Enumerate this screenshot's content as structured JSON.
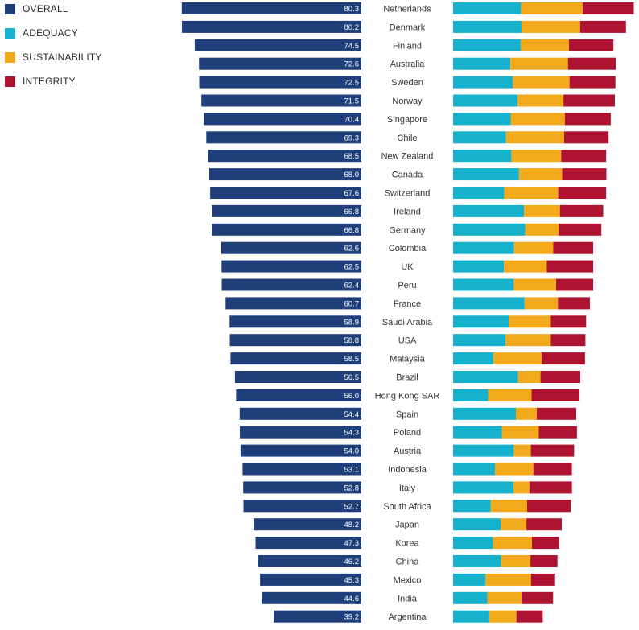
{
  "legend": {
    "overall": "OVERALL",
    "adequacy": "ADEQUACY",
    "sustainability": "SUSTAINABILITY",
    "integrity": "INTEGRITY"
  },
  "colors": {
    "overall": "#1f3f7a",
    "adequacy": "#16b1cc",
    "sustainability": "#f3a91c",
    "integrity": "#ae1431",
    "value_text": "#ffffff",
    "country_text": "#333333"
  },
  "chart_data": {
    "type": "bar",
    "categories": [
      "Netherlands",
      "Denmark",
      "Finland",
      "Australia",
      "Sweden",
      "Norway",
      "Singapore",
      "Chile",
      "New Zealand",
      "Canada",
      "Switzerland",
      "Ireland",
      "Germany",
      "Colombia",
      "UK",
      "Peru",
      "France",
      "Saudi Arabia",
      "USA",
      "Malaysia",
      "Brazil",
      "Hong Kong SAR",
      "Spain",
      "Poland",
      "Austria",
      "Indonesia",
      "Italy",
      "South Africa",
      "Japan",
      "Korea",
      "China",
      "Mexico",
      "India",
      "Argentina"
    ],
    "series": [
      {
        "name": "OVERALL",
        "values": [
          80.3,
          80.2,
          74.5,
          72.6,
          72.5,
          71.5,
          70.4,
          69.3,
          68.5,
          68.0,
          67.6,
          66.8,
          66.8,
          62.6,
          62.5,
          62.4,
          60.7,
          58.9,
          58.8,
          58.5,
          56.5,
          56.0,
          54.4,
          54.3,
          54.0,
          53.1,
          52.8,
          52.7,
          48.2,
          47.3,
          46.2,
          45.3,
          44.6,
          39.2
        ]
      },
      {
        "name": "ADEQUACY",
        "values": [
          36.7,
          36.9,
          36.5,
          30.9,
          32.3,
          34.8,
          31.1,
          28.6,
          31.5,
          35.6,
          27.7,
          38.3,
          39.0,
          32.9,
          27.5,
          32.8,
          38.6,
          30.0,
          28.4,
          21.7,
          35.0,
          18.9,
          33.9,
          26.3,
          32.8,
          22.6,
          32.6,
          20.3,
          25.7,
          21.5,
          25.9,
          17.5,
          18.5,
          19.5
        ]
      },
      {
        "name": "SUSTAINABILITY",
        "values": [
          33.2,
          31.7,
          26.1,
          31.2,
          30.6,
          24.8,
          29.3,
          31.4,
          26.9,
          23.3,
          29.1,
          19.4,
          18.1,
          21.2,
          23.1,
          22.8,
          18.0,
          22.8,
          24.4,
          26.1,
          12.2,
          23.5,
          11.3,
          20.0,
          9.2,
          20.8,
          8.6,
          19.7,
          13.9,
          21.1,
          15.9,
          24.6,
          18.5,
          14.7
        ]
      },
      {
        "name": "INTEGRITY",
        "values": [
          27.7,
          24.8,
          24.0,
          25.9,
          24.8,
          27.8,
          24.8,
          24.0,
          24.3,
          23.9,
          25.9,
          23.4,
          23.0,
          21.6,
          25.1,
          20.1,
          17.3,
          19.1,
          18.7,
          23.5,
          21.5,
          25.9,
          21.3,
          20.6,
          23.4,
          20.8,
          23.0,
          23.7,
          19.1,
          14.6,
          14.6,
          13.0,
          17.0,
          14.2
        ]
      }
    ],
    "xlim": [
      0,
      100
    ]
  }
}
